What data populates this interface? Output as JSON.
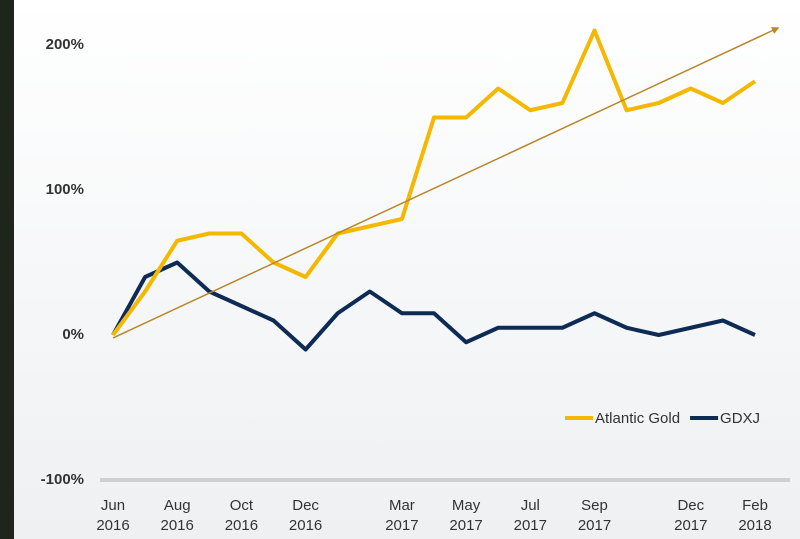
{
  "chart_data": {
    "type": "line",
    "x": [
      "2016-06",
      "2016-07",
      "2016-08",
      "2016-09",
      "2016-10",
      "2016-11",
      "2016-12",
      "2017-01",
      "2017-02",
      "2017-03",
      "2017-04",
      "2017-05",
      "2017-06",
      "2017-07",
      "2017-08",
      "2017-09",
      "2017-10",
      "2017-11",
      "2017-12",
      "2018-01",
      "2018-02"
    ],
    "series": [
      {
        "name": "Atlantic Gold",
        "color": "#f5b800",
        "values": [
          0,
          30,
          65,
          70,
          70,
          50,
          40,
          70,
          75,
          80,
          150,
          150,
          170,
          155,
          160,
          210,
          155,
          160,
          170,
          160,
          175
        ]
      },
      {
        "name": "GDXJ",
        "color": "#0d2b55",
        "values": [
          0,
          40,
          50,
          30,
          20,
          10,
          -10,
          15,
          30,
          15,
          15,
          -5,
          5,
          5,
          5,
          15,
          5,
          0,
          5,
          10,
          0
        ]
      }
    ],
    "ylim": [
      -100,
      220
    ],
    "yticks": [
      {
        "value": -100,
        "label": "-100%"
      },
      {
        "value": 0,
        "label": "0%"
      },
      {
        "value": 100,
        "label": "100%"
      },
      {
        "value": 200,
        "label": "200%"
      }
    ],
    "xticks": [
      {
        "value": "2016-06",
        "label": [
          "Jun",
          "2016"
        ]
      },
      {
        "value": "2016-08",
        "label": [
          "Aug",
          "2016"
        ]
      },
      {
        "value": "2016-10",
        "label": [
          "Oct",
          "2016"
        ]
      },
      {
        "value": "2016-12",
        "label": [
          "Dec",
          "2016"
        ]
      },
      {
        "value": "2017-03",
        "label": [
          "Mar",
          "2017"
        ]
      },
      {
        "value": "2017-05",
        "label": [
          "May",
          "2017"
        ]
      },
      {
        "value": "2017-07",
        "label": [
          "Jul",
          "2017"
        ]
      },
      {
        "value": "2017-09",
        "label": [
          "Sep",
          "2017"
        ]
      },
      {
        "value": "2017-12",
        "label": [
          "Dec",
          "2017"
        ]
      },
      {
        "value": "2018-02",
        "label": [
          "Feb",
          "2018"
        ]
      }
    ],
    "grid": false,
    "legend": "bottom-right"
  }
}
